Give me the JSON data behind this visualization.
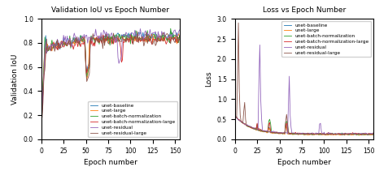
{
  "title_left": "Validation IoU vs Epoch Number",
  "title_right": "Loss vs Epoch Number",
  "xlabel": "Epoch number",
  "ylabel_left": "Validation IoU",
  "ylabel_right": "Loss",
  "n_epochs": 155,
  "models": [
    "unet-baseline",
    "unet-large",
    "unet-batch-normalization",
    "unet-batch-normalization-large",
    "unet-residual",
    "unet-residual-large"
  ],
  "colors": [
    "#1f77b4",
    "#ff7f0e",
    "#2ca02c",
    "#d62728",
    "#9467bd",
    "#8c564b"
  ],
  "ylim_left": [
    0.0,
    1.0
  ],
  "ylim_right": [
    0.0,
    3.0
  ],
  "figsize": [
    4.61,
    2.11
  ],
  "dpi": 100,
  "iou_plateaus": [
    0.855,
    0.838,
    0.848,
    0.828,
    0.87,
    0.835
  ],
  "iou_noise": [
    0.018,
    0.018,
    0.022,
    0.022,
    0.025,
    0.025
  ],
  "iou_warmup": [
    5,
    4,
    4,
    5,
    5,
    6
  ],
  "iou_start": [
    0.68,
    0.73,
    0.68,
    0.68,
    0.68,
    0.7
  ],
  "loss_plateaus": [
    0.12,
    0.11,
    0.12,
    0.13,
    0.13,
    0.12
  ],
  "loss_noise": [
    0.018,
    0.018,
    0.022,
    0.022,
    0.022,
    0.028
  ]
}
